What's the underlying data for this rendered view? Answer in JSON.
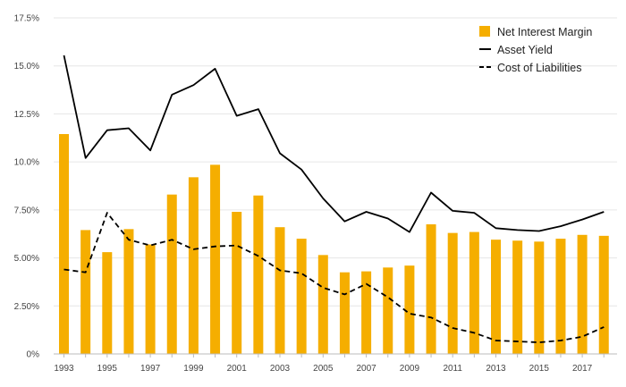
{
  "chart_data": {
    "type": "bar",
    "title": "",
    "xlabel": "",
    "ylabel": "",
    "ylim": [
      0,
      17.5
    ],
    "y_ticks": [
      0,
      2.5,
      5,
      7.5,
      10,
      12.5,
      15,
      17.5
    ],
    "y_tick_labels": [
      "0%",
      "2.50%",
      "5.00%",
      "7.50%",
      "10.0%",
      "12.5%",
      "15.0%",
      "17.5%"
    ],
    "categories": [
      "1993",
      "1994",
      "1995",
      "1996",
      "1997",
      "1998",
      "1999",
      "2000",
      "2001",
      "2002",
      "2003",
      "2004",
      "2005",
      "2006",
      "2007",
      "2008",
      "2009",
      "2010",
      "2011",
      "2012",
      "2013",
      "2014",
      "2015",
      "2016",
      "2017",
      "2018"
    ],
    "x_tick_labels": [
      "1993",
      "",
      "1995",
      "",
      "1997",
      "",
      "1999",
      "",
      "2001",
      "",
      "2003",
      "",
      "2005",
      "",
      "2007",
      "",
      "2009",
      "",
      "2011",
      "",
      "2013",
      "",
      "2015",
      "",
      "2017",
      ""
    ],
    "grid": "horizontal",
    "legend_position": "top-right",
    "series": [
      {
        "name": "Net Interest Margin",
        "kind": "bar",
        "color": "#f5ae00",
        "values": [
          11.45,
          6.45,
          5.3,
          6.5,
          5.7,
          8.3,
          9.2,
          9.85,
          7.4,
          8.25,
          6.6,
          6.0,
          5.15,
          4.25,
          4.3,
          4.5,
          4.6,
          6.75,
          6.3,
          6.35,
          5.95,
          5.9,
          5.85,
          6.0,
          6.2,
          6.15
        ]
      },
      {
        "name": "Asset Yield",
        "kind": "line",
        "color": "#000000",
        "dash": "solid",
        "values": [
          15.55,
          10.2,
          11.65,
          11.75,
          10.6,
          13.5,
          14.0,
          14.85,
          12.4,
          12.75,
          10.45,
          9.6,
          8.1,
          6.9,
          7.4,
          7.05,
          6.35,
          8.4,
          7.45,
          7.35,
          6.55,
          6.45,
          6.4,
          6.65,
          7.0,
          7.4
        ]
      },
      {
        "name": "Cost of Liabilities",
        "kind": "line",
        "color": "#000000",
        "dash": "dashed",
        "values": [
          4.4,
          4.25,
          7.35,
          5.95,
          5.65,
          5.95,
          5.45,
          5.6,
          5.65,
          5.1,
          4.35,
          4.2,
          3.45,
          3.1,
          3.65,
          2.95,
          2.1,
          1.9,
          1.35,
          1.1,
          0.7,
          0.65,
          0.6,
          0.7,
          0.9,
          1.4
        ]
      }
    ]
  }
}
